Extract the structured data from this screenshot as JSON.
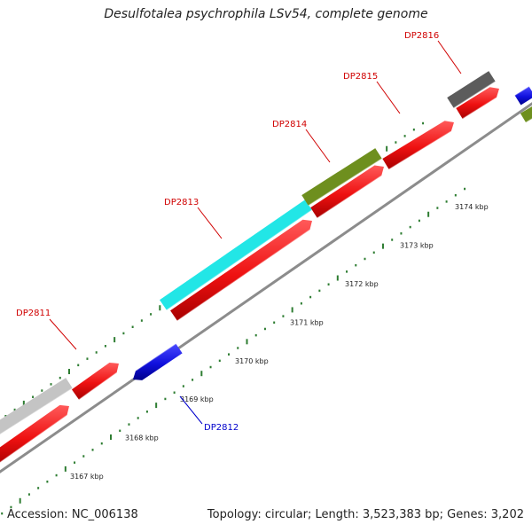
{
  "header": {
    "title": "Desulfotalea psychrophila LSv54, complete genome"
  },
  "footer": {
    "accession": "Accession: NC_006138",
    "topology": "Topology: circular; Length: 3,523,383 bp; Genes: 3,202"
  },
  "colors": {
    "backbone": "#8c8c8c",
    "tick": "#2e7d32",
    "forward_cds": "#ee1111",
    "reverse_cds": "#1010dd",
    "feature_cyan": "#22e6e6",
    "feature_olive": "#6e8f1e",
    "feature_gray": "#c4c4c4",
    "feature_dark": "#5c5c5c",
    "label_forward": "#d00000",
    "label_reverse": "#0000cc"
  },
  "scale": {
    "unit": "kbp",
    "ticks": [
      {
        "value": 3167,
        "label": "3167 kbp"
      },
      {
        "value": 3168,
        "label": "3168 kbp"
      },
      {
        "value": 3169,
        "label": "3169 kbp"
      },
      {
        "value": 3170,
        "label": "3170 kbp"
      },
      {
        "value": 3171,
        "label": "3171 kbp"
      },
      {
        "value": 3172,
        "label": "3172 kbp"
      },
      {
        "value": 3173,
        "label": "3173 kbp"
      },
      {
        "value": 3174,
        "label": "3174 kbp"
      }
    ]
  },
  "genes": [
    {
      "label": "DP2811",
      "strand": "forward",
      "color": "label_forward"
    },
    {
      "label": "DP2812",
      "strand": "reverse",
      "color": "label_reverse"
    },
    {
      "label": "DP2813",
      "strand": "forward",
      "color": "label_forward"
    },
    {
      "label": "DP2814",
      "strand": "forward",
      "color": "label_forward"
    },
    {
      "label": "DP2815",
      "strand": "forward",
      "color": "label_forward"
    },
    {
      "label": "DP2816",
      "strand": "forward",
      "color": "label_forward"
    }
  ]
}
